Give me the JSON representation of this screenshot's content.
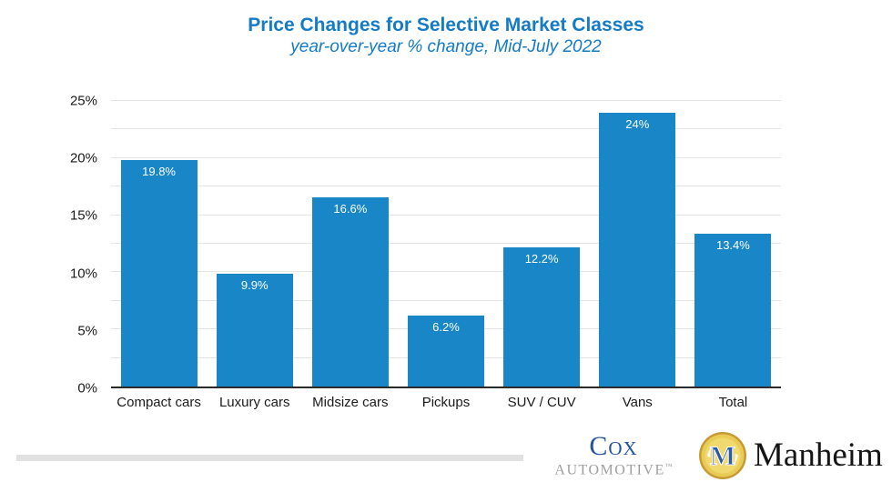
{
  "header": {
    "title": "Price Changes for Selective Market Classes",
    "subtitle": "year-over-year % change, Mid-July 2022"
  },
  "chart_data": {
    "type": "bar",
    "title": "Price Changes for Selective Market Classes",
    "subtitle": "year-over-year % change, Mid-July 2022",
    "categories": [
      "Compact cars",
      "Luxury cars",
      "Midsize cars",
      "Pickups",
      "SUV / CUV",
      "Vans",
      "Total"
    ],
    "values": [
      19.8,
      9.9,
      16.6,
      6.2,
      12.2,
      24,
      13.4
    ],
    "value_labels": [
      "19.8%",
      "9.9%",
      "16.6%",
      "6.2%",
      "12.2%",
      "24%",
      "13.4%"
    ],
    "xlabel": "",
    "ylabel": "",
    "ylim": [
      0,
      25
    ],
    "yticks": [
      0,
      5,
      10,
      15,
      20,
      25
    ],
    "ytick_labels": [
      "0%",
      "5%",
      "10%",
      "15%",
      "20%",
      "25%"
    ],
    "grid": true,
    "grid_step": 2.5,
    "legend": false,
    "bar_color": "#1986c8",
    "value_label_color": "#ffffff"
  },
  "colors": {
    "title": "#147bc7",
    "subtitle": "#147bc7",
    "axis_line": "#2b2b2b",
    "gridline": "#e4e4e4",
    "cox_blue": "#24549c",
    "cox_gray": "#9e9e9e",
    "manheim_gold": "#e9cc55",
    "manheim_blue": "#2a5aa8"
  },
  "footer": {
    "cox": {
      "line1": "Cox",
      "line2": "AUTOMOTIVE",
      "tm": "™"
    },
    "manheim": {
      "text": "Manheim",
      "monogram": "M"
    }
  }
}
